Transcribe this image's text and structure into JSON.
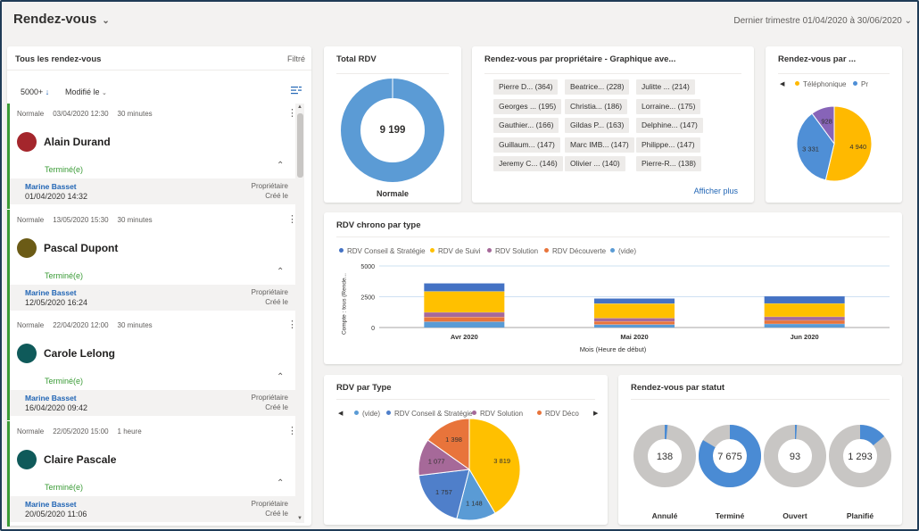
{
  "header": {
    "title": "Rendez-vous",
    "period": "Dernier trimestre 01/04/2020 à 30/06/2020"
  },
  "list": {
    "title": "Tous les rendez-vous",
    "filter": "Filtré",
    "count": "5000+",
    "sort": "Modifié le",
    "owner_label": "Propriétaire",
    "created_label": "Créé le",
    "records": [
      {
        "priority": "Normale",
        "date": "03/04/2020 12:30",
        "duration": "30 minutes",
        "name": "Alain Durand",
        "status": "Terminé(e)",
        "owner": "Marine Basset",
        "created": "01/04/2020 14:32",
        "color": "#a4262c"
      },
      {
        "priority": "Normale",
        "date": "13/05/2020 15:30",
        "duration": "30 minutes",
        "name": "Pascal Dupont",
        "status": "Terminé(e)",
        "owner": "Marine Basset",
        "created": "12/05/2020 16:24",
        "color": "#6b5b16"
      },
      {
        "priority": "Normale",
        "date": "22/04/2020 12:00",
        "duration": "30 minutes",
        "name": "Carole Lelong",
        "status": "Terminé(e)",
        "owner": "Marine Basset",
        "created": "16/04/2020 09:42",
        "color": "#0f5a5a"
      },
      {
        "priority": "Normale",
        "date": "22/05/2020 15:00",
        "duration": "1 heure",
        "name": "Claire Pascale",
        "status": "Terminé(e)",
        "owner": "Marine Basset",
        "created": "20/05/2020 11:06",
        "color": "#0f5a5a"
      }
    ]
  },
  "total": {
    "title": "Total RDV",
    "value": "9 199",
    "label": "Normale"
  },
  "owners": {
    "title": "Rendez-vous par propriétaire - Graphique ave...",
    "more": "Afficher plus",
    "chips": [
      "Pierre D... (364)",
      "Beatrice... (228)",
      "Julitte ... (214)",
      "Georges ... (195)",
      "Christia... (186)",
      "Lorraine... (175)",
      "Gauthier... (166)",
      "Gildas P... (163)",
      "Delphine... (147)",
      "Guillaum... (147)",
      "Marc IMB... (147)",
      "Philippe... (147)",
      "Jeremy C... (146)",
      "Olivier ... (140)",
      "Pierre-R... (138)"
    ]
  },
  "canal": {
    "title": "Rendez-vous par ...",
    "legend": [
      "Téléphonique",
      "Pr"
    ]
  },
  "chrono": {
    "title": "RDV chrono par type",
    "legend": [
      "RDV Conseil & Stratégie",
      "RDV de Suivi",
      "RDV Solution",
      "RDV Découverte",
      "(vide)"
    ],
    "ylabel": "Compte : tous (Rende...",
    "xlabel": "Mois (Heure de début)"
  },
  "type": {
    "title": "RDV par Type",
    "legend": [
      "(vide)",
      "RDV Conseil & Stratégie",
      "RDV Solution",
      "RDV Déco"
    ]
  },
  "statut": {
    "title": "Rendez-vous par statut"
  },
  "chart_data": [
    {
      "type": "pie",
      "title": "Rendez-vous par ...",
      "slices": [
        {
          "name": "Téléphonique",
          "value": 4940,
          "color": "#ffb900"
        },
        {
          "name": "Pr",
          "value": 3331,
          "color": "#4f8fd6"
        },
        {
          "name": "",
          "value": 928,
          "color": "#8764b8"
        }
      ]
    },
    {
      "type": "bar",
      "stacked": true,
      "title": "RDV chrono par type",
      "categories": [
        "Avr 2020",
        "Mai 2020",
        "Jun 2020"
      ],
      "ylim": [
        0,
        5000
      ],
      "yticks": [
        0,
        2500,
        5000
      ],
      "series": [
        {
          "name": "(vide)",
          "color": "#5a9bd5",
          "values": [
            480,
            250,
            300
          ]
        },
        {
          "name": "RDV Découverte",
          "color": "#e8743b",
          "values": [
            380,
            260,
            290
          ]
        },
        {
          "name": "RDV Solution",
          "color": "#a66999",
          "values": [
            380,
            260,
            290
          ]
        },
        {
          "name": "RDV de Suivi",
          "color": "#ffc000",
          "values": [
            1700,
            1180,
            1080
          ]
        },
        {
          "name": "RDV Conseil & Stratégie",
          "color": "#4472c4",
          "values": [
            660,
            420,
            590
          ]
        }
      ]
    },
    {
      "type": "pie",
      "title": "RDV par Type",
      "slices": [
        {
          "name": "(vide)",
          "value": 3819,
          "color": "#ffc000"
        },
        {
          "name": "RDV Conseil & Stratégie",
          "value": 1148,
          "color": "#5a9bd5"
        },
        {
          "name": "RDV Solution",
          "value": 1757,
          "color": "#4f7fca"
        },
        {
          "name": "",
          "value": 1077,
          "color": "#a66999"
        },
        {
          "name": "RDV Déco",
          "value": 1398,
          "color": "#e8743b"
        }
      ]
    },
    {
      "type": "donut",
      "title": "Rendez-vous par statut",
      "items": [
        {
          "label": "Annulé",
          "value": 138,
          "display": "138"
        },
        {
          "label": "Terminé",
          "value": 7675,
          "display": "7 675"
        },
        {
          "label": "Ouvert",
          "value": 93,
          "display": "93"
        },
        {
          "label": "Planifié",
          "value": 1293,
          "display": "1 293"
        }
      ],
      "total": 9199
    }
  ]
}
